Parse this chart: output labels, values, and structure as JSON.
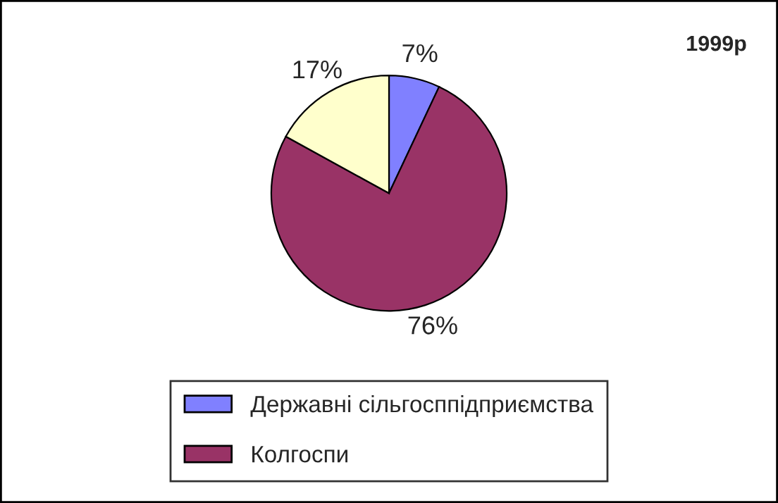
{
  "chart_data": {
    "type": "pie",
    "title": "1999р",
    "categories": [
      "Державні сільгосппідприємства",
      "Колгоспи",
      null
    ],
    "values": [
      7,
      76,
      17
    ],
    "colors": [
      "#8080ff",
      "#993366",
      "#ffffcc"
    ],
    "value_labels": [
      "7%",
      "76%",
      "17%"
    ],
    "legend": "bottom"
  }
}
